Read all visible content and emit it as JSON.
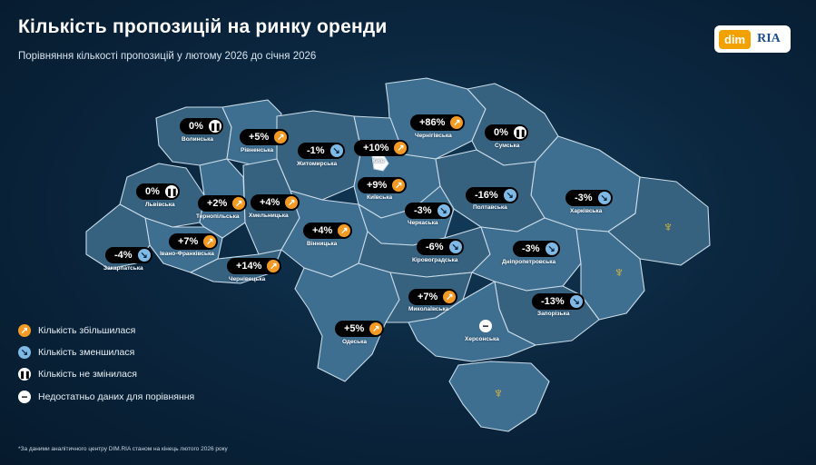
{
  "header": {
    "title": "Кількість пропозицій на ринку оренди",
    "subtitle": "Порівняння кількості пропозицій у лютому 2026 до січня 2026"
  },
  "logo": {
    "dim": "dim",
    "ria": "RIA"
  },
  "regions": {
    "volynska": {
      "name": "Волинська",
      "value": "0%",
      "trend": "same"
    },
    "rivnenska": {
      "name": "Рівненська",
      "value": "+5%",
      "trend": "up"
    },
    "zhytomyrska": {
      "name": "Житомирська",
      "value": "-1%",
      "trend": "down"
    },
    "kyiv": {
      "name": "Київ",
      "value": "+10%",
      "trend": "up"
    },
    "chernihivska": {
      "name": "Чернігівська",
      "value": "+86%",
      "trend": "up"
    },
    "sumska": {
      "name": "Сумська",
      "value": "0%",
      "trend": "same"
    },
    "lvivska": {
      "name": "Львівська",
      "value": "0%",
      "trend": "same"
    },
    "ternopilska": {
      "name": "Тернопільська",
      "value": "+2%",
      "trend": "up"
    },
    "khmelnytska": {
      "name": "Хмельницька",
      "value": "+4%",
      "trend": "up"
    },
    "kyivska": {
      "name": "Київська",
      "value": "+9%",
      "trend": "up"
    },
    "poltavska": {
      "name": "Полтавська",
      "value": "-16%",
      "trend": "down"
    },
    "kharkivska": {
      "name": "Харківська",
      "value": "-3%",
      "trend": "down"
    },
    "cherkaska": {
      "name": "Черкаська",
      "value": "-3%",
      "trend": "down"
    },
    "vinnytska": {
      "name": "Вінницька",
      "value": "+4%",
      "trend": "up"
    },
    "ivano_frankivska": {
      "name": "Івано-Франківська",
      "value": "+7%",
      "trend": "up"
    },
    "zakarpatska": {
      "name": "Закарпатська",
      "value": "-4%",
      "trend": "down"
    },
    "chernivetska": {
      "name": "Чернівецька",
      "value": "+14%",
      "trend": "up"
    },
    "kirovohradska": {
      "name": "Кіровоградська",
      "value": "-6%",
      "trend": "down"
    },
    "dnipropetrovska": {
      "name": "Дніпропетровська",
      "value": "-3%",
      "trend": "down"
    },
    "mykolaivska": {
      "name": "Миколаївська",
      "value": "+7%",
      "trend": "up"
    },
    "zaporizka": {
      "name": "Запорізька",
      "value": "-13%",
      "trend": "down"
    },
    "odeska": {
      "name": "Одеська",
      "value": "+5%",
      "trend": "up"
    },
    "khersonska": {
      "name": "Херсонська",
      "value": "",
      "trend": "na"
    }
  },
  "legend": {
    "up": "Кількість збільшилася",
    "down": "Кількість зменшилася",
    "same": "Кількість не змінилася",
    "na": "Недостатньо даних для порівняння"
  },
  "icons": {
    "up": "arrow-up-right-icon",
    "down": "arrow-down-right-icon",
    "same": "pause-icon",
    "na": "minus-icon"
  },
  "colors": {
    "increase": "#f29a24",
    "decrease": "#7fb9e6",
    "same": "#ffffff",
    "background": "#0b2740",
    "map_fill": "#3f6f90"
  },
  "footnote": "*За даними аналітичного центру DIM.RIA станом на кінець лютого 2026 року"
}
